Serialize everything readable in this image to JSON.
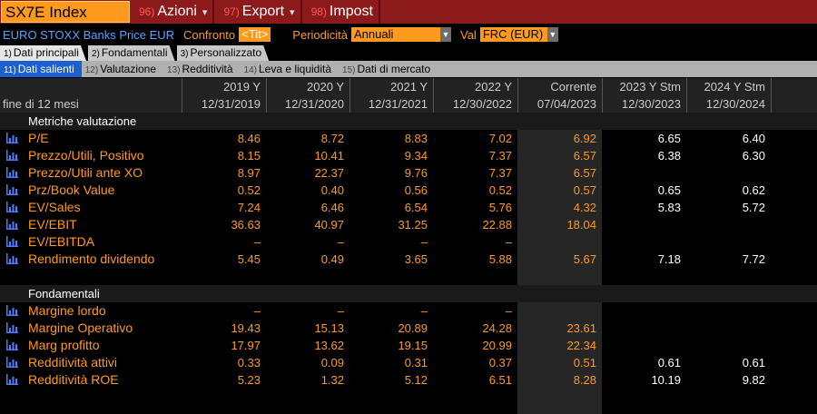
{
  "titlebar": {
    "ticker": "SX7E Index",
    "menus": [
      {
        "num": "96)",
        "label": "Azioni"
      },
      {
        "num": "97)",
        "label": "Export"
      },
      {
        "num": "98)",
        "label": "Impost"
      }
    ]
  },
  "options": {
    "security_name": "EURO STOXX Banks Price EUR",
    "compare_label": "Confronto",
    "compare_value": "<Tit>",
    "period_label": "Periodicità",
    "period_value": "Annuali",
    "currency_label": "Val",
    "currency_value": "FRC (EUR)"
  },
  "tabs": [
    {
      "num": "1)",
      "label": "Dati principali"
    },
    {
      "num": "2)",
      "label": "Fondamentali"
    },
    {
      "num": "3)",
      "label": "Personalizzato"
    }
  ],
  "subtabs": [
    {
      "num": "11)",
      "label": "Dati salienti"
    },
    {
      "num": "12)",
      "label": "Valutazione"
    },
    {
      "num": "13)",
      "label": "Redditività"
    },
    {
      "num": "14)",
      "label": "Leva e liquidità"
    },
    {
      "num": "15)",
      "label": "Dati di mercato"
    }
  ],
  "table": {
    "period_label": "fine di 12 mesi",
    "columns": [
      {
        "head": "2019 Y",
        "date": "12/31/2019"
      },
      {
        "head": "2020 Y",
        "date": "12/31/2020"
      },
      {
        "head": "2021 Y",
        "date": "12/31/2021"
      },
      {
        "head": "2022 Y",
        "date": "12/30/2022"
      },
      {
        "head": "Corrente",
        "date": "07/04/2023"
      },
      {
        "head": "2023 Y Stm",
        "date": "12/30/2023"
      },
      {
        "head": "2024 Y Stm",
        "date": "12/30/2024"
      }
    ],
    "sections": [
      {
        "title": "Metriche valutazione",
        "rows": [
          {
            "label": "P/E",
            "values": [
              "8.46",
              "8.72",
              "8.83",
              "7.02",
              "6.92",
              "6.65",
              "6.40"
            ]
          },
          {
            "label": "Prezzo/Utili, Positivo",
            "values": [
              "8.15",
              "10.41",
              "9.34",
              "7.37",
              "6.57",
              "6.38",
              "6.30"
            ]
          },
          {
            "label": "Prezzo/Utili ante XO",
            "values": [
              "8.97",
              "22.37",
              "9.76",
              "7.37",
              "6.57",
              "",
              ""
            ]
          },
          {
            "label": "Prz/Book Value",
            "values": [
              "0.52",
              "0.40",
              "0.56",
              "0.52",
              "0.57",
              "0.65",
              "0.62"
            ]
          },
          {
            "label": "EV/Sales",
            "values": [
              "7.24",
              "6.46",
              "6.54",
              "5.76",
              "4.32",
              "5.83",
              "5.72"
            ]
          },
          {
            "label": "EV/EBIT",
            "values": [
              "36.63",
              "40.97",
              "31.25",
              "22.88",
              "18.04",
              "",
              ""
            ]
          },
          {
            "label": "EV/EBITDA",
            "values": [
              "–",
              "–",
              "–",
              "–",
              "",
              "",
              ""
            ]
          },
          {
            "label": "Rendimento dividendo",
            "values": [
              "5.45",
              "0.49",
              "3.65",
              "5.88",
              "5.67",
              "7.18",
              "7.72"
            ]
          }
        ]
      },
      {
        "title": "Fondamentali",
        "rows": [
          {
            "label": "Margine lordo",
            "values": [
              "–",
              "–",
              "–",
              "–",
              "",
              "",
              ""
            ]
          },
          {
            "label": "Margine Operativo",
            "values": [
              "19.43",
              "15.13",
              "20.89",
              "24.28",
              "23.61",
              "",
              ""
            ]
          },
          {
            "label": "Marg profitto",
            "values": [
              "17.97",
              "13.62",
              "19.15",
              "20.99",
              "22.34",
              "",
              ""
            ]
          },
          {
            "label": "Redditività attivi",
            "values": [
              "0.33",
              "0.09",
              "0.31",
              "0.37",
              "0.51",
              "0.61",
              "0.61"
            ]
          },
          {
            "label": "Redditività ROE",
            "values": [
              "5.23",
              "1.32",
              "5.12",
              "6.51",
              "8.28",
              "10.19",
              "9.82"
            ]
          }
        ]
      }
    ]
  }
}
